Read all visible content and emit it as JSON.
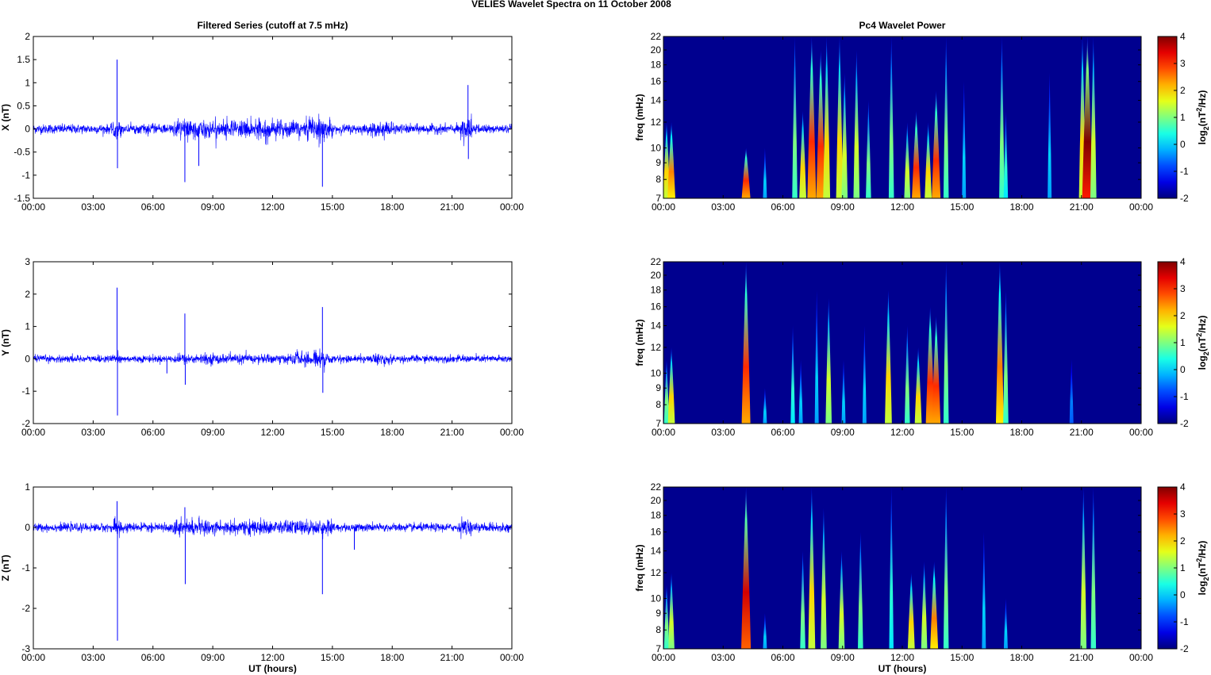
{
  "title": "VELIES Wavelet Spectra on 11 October   2008",
  "chart_data": [
    {
      "type": "line",
      "panel": "X",
      "title": "Filtered Series (cutoff at 7.5 mHz)",
      "ylabel": "X (nT)",
      "xlabel": "",
      "ylim": [
        -1.5,
        2
      ],
      "yticks": [
        "-1.5",
        "-1",
        "-0.5",
        "0",
        "0.5",
        "1",
        "1.5",
        "2"
      ],
      "yvals": [
        -1.5,
        -1,
        -0.5,
        0,
        0.5,
        1,
        1.5,
        2
      ],
      "noise_base": 0.09,
      "activity": [
        [
          4.0,
          4.4,
          0.2
        ],
        [
          7,
          15,
          0.22
        ],
        [
          13.8,
          14.6,
          0.3
        ],
        [
          16.8,
          18,
          0.18
        ],
        [
          21.4,
          22,
          0.3
        ]
      ],
      "spikes": [
        [
          4.2,
          1.5
        ],
        [
          4.22,
          -0.85
        ],
        [
          7.6,
          -1.15
        ],
        [
          14.5,
          -1.25
        ],
        [
          21.8,
          0.95
        ],
        [
          21.82,
          -0.65
        ],
        [
          8.3,
          -0.8
        ]
      ]
    },
    {
      "type": "line",
      "panel": "Y",
      "title": "",
      "ylabel": "Y (nT)",
      "xlabel": "",
      "ylim": [
        -2,
        3
      ],
      "yticks": [
        "-2",
        "-1",
        "0",
        "1",
        "2",
        "3"
      ],
      "yvals": [
        -2,
        -1,
        0,
        1,
        2,
        3
      ],
      "noise_base": 0.1,
      "activity": [
        [
          4.0,
          4.4,
          0.2
        ],
        [
          7,
          15,
          0.17
        ],
        [
          13,
          14.7,
          0.28
        ],
        [
          17,
          18,
          0.22
        ]
      ],
      "spikes": [
        [
          4.2,
          2.2
        ],
        [
          4.22,
          -1.75
        ],
        [
          7.6,
          1.4
        ],
        [
          7.62,
          -0.8
        ],
        [
          14.5,
          1.6
        ],
        [
          14.52,
          -1.05
        ],
        [
          6.7,
          -0.45
        ]
      ]
    },
    {
      "type": "line",
      "panel": "Z",
      "title": "",
      "ylabel": "Z (nT)",
      "xlabel": "UT (hours)",
      "ylim": [
        -3,
        1
      ],
      "yticks": [
        "-3",
        "-2",
        "-1",
        "0",
        "1"
      ],
      "yvals": [
        -3,
        -2,
        -1,
        0,
        1
      ],
      "noise_base": 0.09,
      "activity": [
        [
          4.0,
          4.4,
          0.25
        ],
        [
          7,
          15,
          0.2
        ],
        [
          21.4,
          22,
          0.25
        ]
      ],
      "spikes": [
        [
          4.2,
          0.65
        ],
        [
          4.22,
          -2.8
        ],
        [
          7.6,
          0.5
        ],
        [
          7.62,
          -1.4
        ],
        [
          14.5,
          -1.65
        ],
        [
          16.1,
          -0.55
        ]
      ]
    },
    {
      "type": "heatmap",
      "panel": "X",
      "title": "Pc4 Wavelet Power",
      "ylabel": "freq (mHz)",
      "xlabel": "",
      "clabel": "log2(nT2/Hz)",
      "clim": [
        -2,
        4
      ],
      "ylim": [
        7,
        22
      ],
      "yscale": "log",
      "events": [
        [
          0.16,
          2,
          12
        ],
        [
          0.4,
          2.5,
          12
        ],
        [
          4.15,
          3,
          10
        ],
        [
          5.1,
          0,
          10
        ],
        [
          6.6,
          1,
          22
        ],
        [
          7.0,
          2,
          13
        ],
        [
          7.45,
          3,
          22
        ],
        [
          7.9,
          3,
          20
        ],
        [
          8.2,
          2,
          22
        ],
        [
          8.85,
          2,
          22
        ],
        [
          9.1,
          1.5,
          17
        ],
        [
          9.7,
          1.5,
          20
        ],
        [
          10.3,
          1,
          14
        ],
        [
          11.45,
          1,
          22
        ],
        [
          12.25,
          1.5,
          12
        ],
        [
          12.7,
          3,
          13
        ],
        [
          13.3,
          2,
          12
        ],
        [
          13.7,
          3,
          15
        ],
        [
          14.2,
          1,
          22
        ],
        [
          15.1,
          0,
          16
        ],
        [
          17.0,
          1,
          22
        ],
        [
          17.2,
          0.5,
          13
        ],
        [
          19.4,
          0,
          17
        ],
        [
          21.05,
          2,
          22
        ],
        [
          21.3,
          4,
          22
        ],
        [
          21.6,
          1.5,
          22
        ]
      ]
    },
    {
      "type": "heatmap",
      "panel": "Y",
      "title": "",
      "ylabel": "freq (mHz)",
      "xlabel": "",
      "clabel": "log2(nT2/Hz)",
      "clim": [
        -2,
        4
      ],
      "ylim": [
        7,
        22
      ],
      "yscale": "log",
      "events": [
        [
          0.16,
          1,
          11
        ],
        [
          0.4,
          2,
          12
        ],
        [
          4.15,
          3,
          22
        ],
        [
          5.1,
          0,
          9
        ],
        [
          6.5,
          0.5,
          14
        ],
        [
          6.9,
          0,
          11
        ],
        [
          7.7,
          0,
          18
        ],
        [
          8.3,
          1.5,
          17
        ],
        [
          9.05,
          0,
          11
        ],
        [
          10.1,
          0,
          14
        ],
        [
          11.3,
          2,
          18
        ],
        [
          12.25,
          1,
          14
        ],
        [
          12.8,
          2,
          12
        ],
        [
          13.4,
          3,
          16
        ],
        [
          13.7,
          3,
          15
        ],
        [
          14.2,
          1,
          22
        ],
        [
          16.9,
          2.5,
          22
        ],
        [
          17.2,
          1,
          18
        ],
        [
          20.5,
          -0.5,
          11
        ]
      ]
    },
    {
      "type": "heatmap",
      "panel": "Z",
      "title": "",
      "ylabel": "freq (mHz)",
      "xlabel": "UT (hours)",
      "clabel": "log2(nT2/Hz)",
      "clim": [
        -2,
        4
      ],
      "ylim": [
        7,
        22
      ],
      "yscale": "log",
      "events": [
        [
          0.16,
          1,
          11
        ],
        [
          0.4,
          1.5,
          12
        ],
        [
          4.15,
          3.5,
          22
        ],
        [
          5.1,
          0,
          9
        ],
        [
          7.0,
          1,
          14
        ],
        [
          7.45,
          2,
          22
        ],
        [
          8.05,
          1.5,
          19
        ],
        [
          8.95,
          1.5,
          14
        ],
        [
          9.9,
          1,
          16
        ],
        [
          11.45,
          0.5,
          22
        ],
        [
          12.45,
          2,
          12
        ],
        [
          13.1,
          1.5,
          13
        ],
        [
          13.6,
          2.5,
          13
        ],
        [
          14.2,
          1,
          22
        ],
        [
          16.1,
          0,
          16
        ],
        [
          17.2,
          0,
          10
        ],
        [
          21.1,
          1.5,
          22
        ],
        [
          21.6,
          1,
          22
        ]
      ]
    }
  ],
  "xticks": [
    "00:00",
    "03:00",
    "06:00",
    "09:00",
    "12:00",
    "15:00",
    "18:00",
    "21:00",
    "00:00"
  ],
  "freq_ticks": [
    "7",
    "8",
    "9",
    "10",
    "12",
    "14",
    "16",
    "18",
    "20",
    "22"
  ],
  "cbar_ticks": [
    "-2",
    "-1",
    "0",
    "1",
    "2",
    "3",
    "4"
  ],
  "colors": {
    "line": "#0000ff",
    "bg": "#00008f"
  }
}
